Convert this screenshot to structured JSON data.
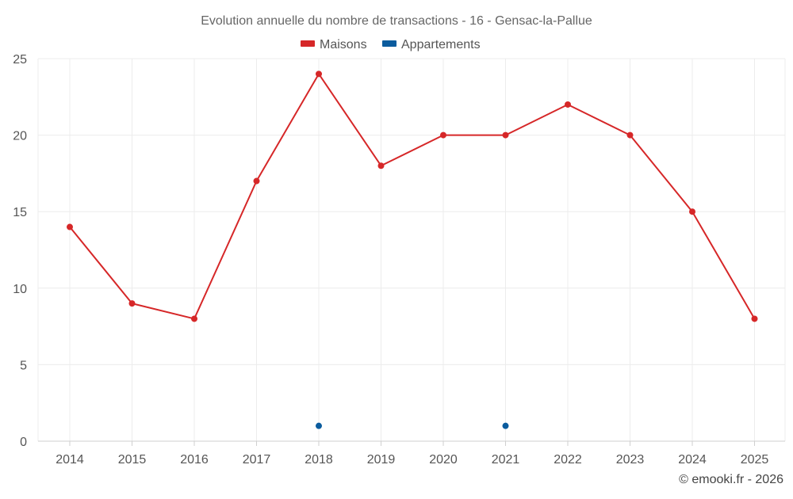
{
  "chart_data": {
    "type": "line",
    "title": "Evolution annuelle du nombre de transactions - 16 - Gensac-la-Pallue",
    "xlabel": "",
    "ylabel": "",
    "categories": [
      "2014",
      "2015",
      "2016",
      "2017",
      "2018",
      "2019",
      "2020",
      "2021",
      "2022",
      "2023",
      "2024",
      "2025"
    ],
    "ylim": [
      0,
      25
    ],
    "yticks": [
      0,
      5,
      10,
      15,
      20,
      25
    ],
    "grid": true,
    "legend_position": "top-center",
    "series": [
      {
        "name": "Maisons",
        "color": "#d62728",
        "line": true,
        "values": [
          14,
          9,
          8,
          17,
          24,
          18,
          20,
          20,
          22,
          20,
          15,
          8
        ]
      },
      {
        "name": "Appartements",
        "color": "#0b5c9e",
        "line": false,
        "values": [
          null,
          null,
          null,
          null,
          1,
          null,
          null,
          1,
          null,
          null,
          null,
          null
        ]
      }
    ]
  },
  "credit": "© emooki.fr - 2026"
}
